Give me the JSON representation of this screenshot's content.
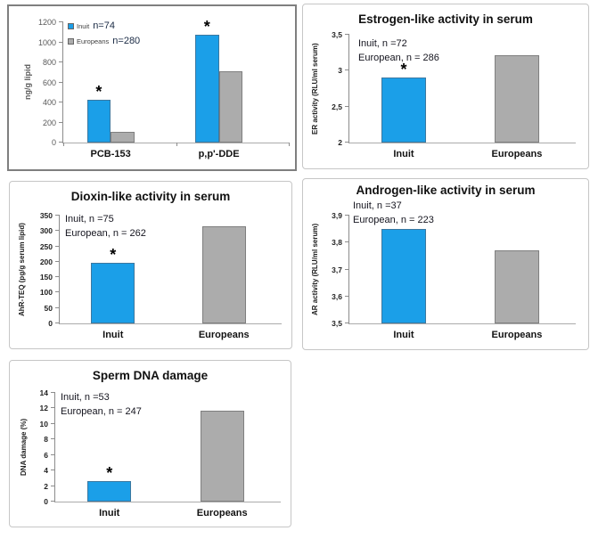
{
  "colors": {
    "inuit_bar": "#1B9FE8",
    "european_bar": "#ACACAC",
    "star": "#000000"
  },
  "chart_data": [
    {
      "type": "bar",
      "title": "",
      "ylabel": "ng/g lipid",
      "ylim": [
        0,
        1200
      ],
      "yticks": [
        {
          "v": 0,
          "label": "0"
        },
        {
          "v": 200,
          "label": "200"
        },
        {
          "v": 400,
          "label": "400"
        },
        {
          "v": 600,
          "label": "600"
        },
        {
          "v": 800,
          "label": "800"
        },
        {
          "v": 1000,
          "label": "1000"
        },
        {
          "v": 1200,
          "label": "1200"
        }
      ],
      "categories": [
        "PCB-153",
        "p,p'-DDE"
      ],
      "series": [
        {
          "name": "Inuit",
          "n_label": "n=74",
          "values": [
            430,
            1080
          ],
          "starred": [
            true,
            true
          ]
        },
        {
          "name": "Europeans",
          "n_label": "n=280",
          "values": [
            110,
            710
          ],
          "starred": [
            false,
            false
          ]
        }
      ],
      "legend_position": "top-left",
      "grid": false
    },
    {
      "type": "bar",
      "title": "Estrogen-like activity in serum",
      "ylabel": "ER activity (RLU/ml serum)",
      "ylim": [
        2,
        3.5
      ],
      "yticks": [
        {
          "v": 2,
          "label": "2"
        },
        {
          "v": 2.5,
          "label": "2,5"
        },
        {
          "v": 3,
          "label": "3"
        },
        {
          "v": 3.5,
          "label": "3,5"
        }
      ],
      "annotation": [
        "Inuit, n =72",
        "European, n = 286"
      ],
      "categories": [
        "Inuit",
        "Europeans"
      ],
      "values": [
        2.91,
        3.21
      ],
      "starred": [
        true,
        false
      ],
      "grid": false
    },
    {
      "type": "bar",
      "title": "Dioxin-like activity in serum",
      "ylabel": "AhR-TEQ (pg/g serum lipid)",
      "ylim": [
        0,
        350
      ],
      "yticks": [
        {
          "v": 0,
          "label": "0"
        },
        {
          "v": 50,
          "label": "50"
        },
        {
          "v": 100,
          "label": "100"
        },
        {
          "v": 150,
          "label": "150"
        },
        {
          "v": 200,
          "label": "200"
        },
        {
          "v": 250,
          "label": "250"
        },
        {
          "v": 300,
          "label": "300"
        },
        {
          "v": 350,
          "label": "350"
        }
      ],
      "annotation": [
        "Inuit, n =75",
        "European, n = 262"
      ],
      "categories": [
        "Inuit",
        "Europeans"
      ],
      "values": [
        196,
        315
      ],
      "starred": [
        true,
        false
      ],
      "grid": false
    },
    {
      "type": "bar",
      "title": "Androgen-like activity in serum",
      "ylabel": "AR activity (RLU/ml serum)",
      "ylim": [
        3.5,
        3.9
      ],
      "yticks": [
        {
          "v": 3.5,
          "label": "3,5"
        },
        {
          "v": 3.6,
          "label": "3,6"
        },
        {
          "v": 3.7,
          "label": "3,7"
        },
        {
          "v": 3.8,
          "label": "3,8"
        },
        {
          "v": 3.9,
          "label": "3,9"
        }
      ],
      "annotation": [
        "Inuit, n =37",
        "European, n = 223"
      ],
      "categories": [
        "Inuit",
        "Europeans"
      ],
      "values": [
        3.85,
        3.77
      ],
      "starred": [
        false,
        false
      ],
      "grid": false
    },
    {
      "type": "bar",
      "title": "Sperm DNA damage",
      "ylabel": "DNA damage (%)",
      "ylim": [
        0,
        14
      ],
      "yticks": [
        {
          "v": 0,
          "label": "0"
        },
        {
          "v": 2,
          "label": "2"
        },
        {
          "v": 4,
          "label": "4"
        },
        {
          "v": 6,
          "label": "6"
        },
        {
          "v": 8,
          "label": "8"
        },
        {
          "v": 10,
          "label": "10"
        },
        {
          "v": 12,
          "label": "12"
        },
        {
          "v": 14,
          "label": "14"
        }
      ],
      "annotation": [
        "Inuit, n =53",
        "European, n = 247"
      ],
      "categories": [
        "Inuit",
        "Europeans"
      ],
      "values": [
        2.6,
        11.7
      ],
      "starred": [
        true,
        false
      ],
      "grid": false
    }
  ]
}
